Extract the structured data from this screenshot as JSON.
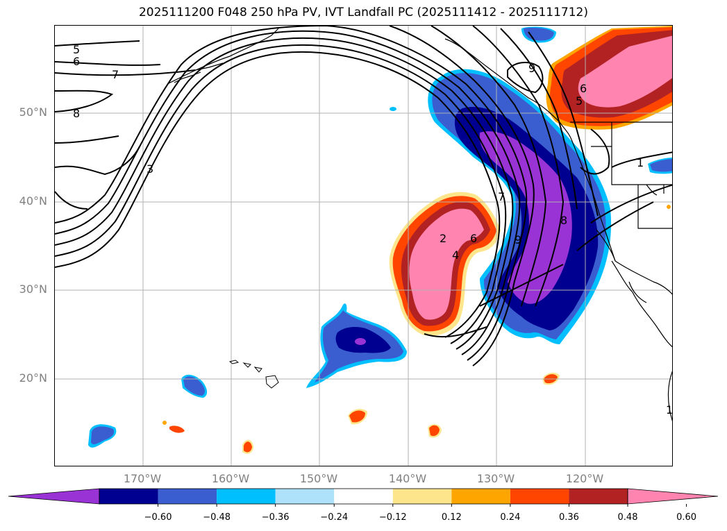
{
  "title": "2025111200 F048 250 hPa PV, IVT Landfall PC (2025111412 - 2025111712)",
  "map": {
    "lat_labels": [
      "50°N",
      "40°N",
      "30°N",
      "20°N"
    ],
    "lon_labels": [
      "170°W",
      "160°W",
      "150°W",
      "140°W",
      "130°W",
      "120°W"
    ],
    "contour_labels": [
      "5",
      "6",
      "7",
      "8",
      "3",
      "9",
      "1",
      "2",
      "4",
      "6",
      "9",
      "5",
      "6",
      "7",
      "8",
      "1"
    ]
  },
  "colorbar": {
    "colors": [
      "#9933d6",
      "#000090",
      "#3a5ed0",
      "#00bfff",
      "#aee2fb",
      "#ffffff",
      "#fde58c",
      "#ffa500",
      "#ff4500",
      "#b22222",
      "#ff85b0"
    ],
    "tick_labels": [
      "−0.60",
      "−0.48",
      "−0.36",
      "−0.24",
      "−0.12",
      "0.12",
      "0.24",
      "0.36",
      "0.48",
      "0.60"
    ]
  }
}
